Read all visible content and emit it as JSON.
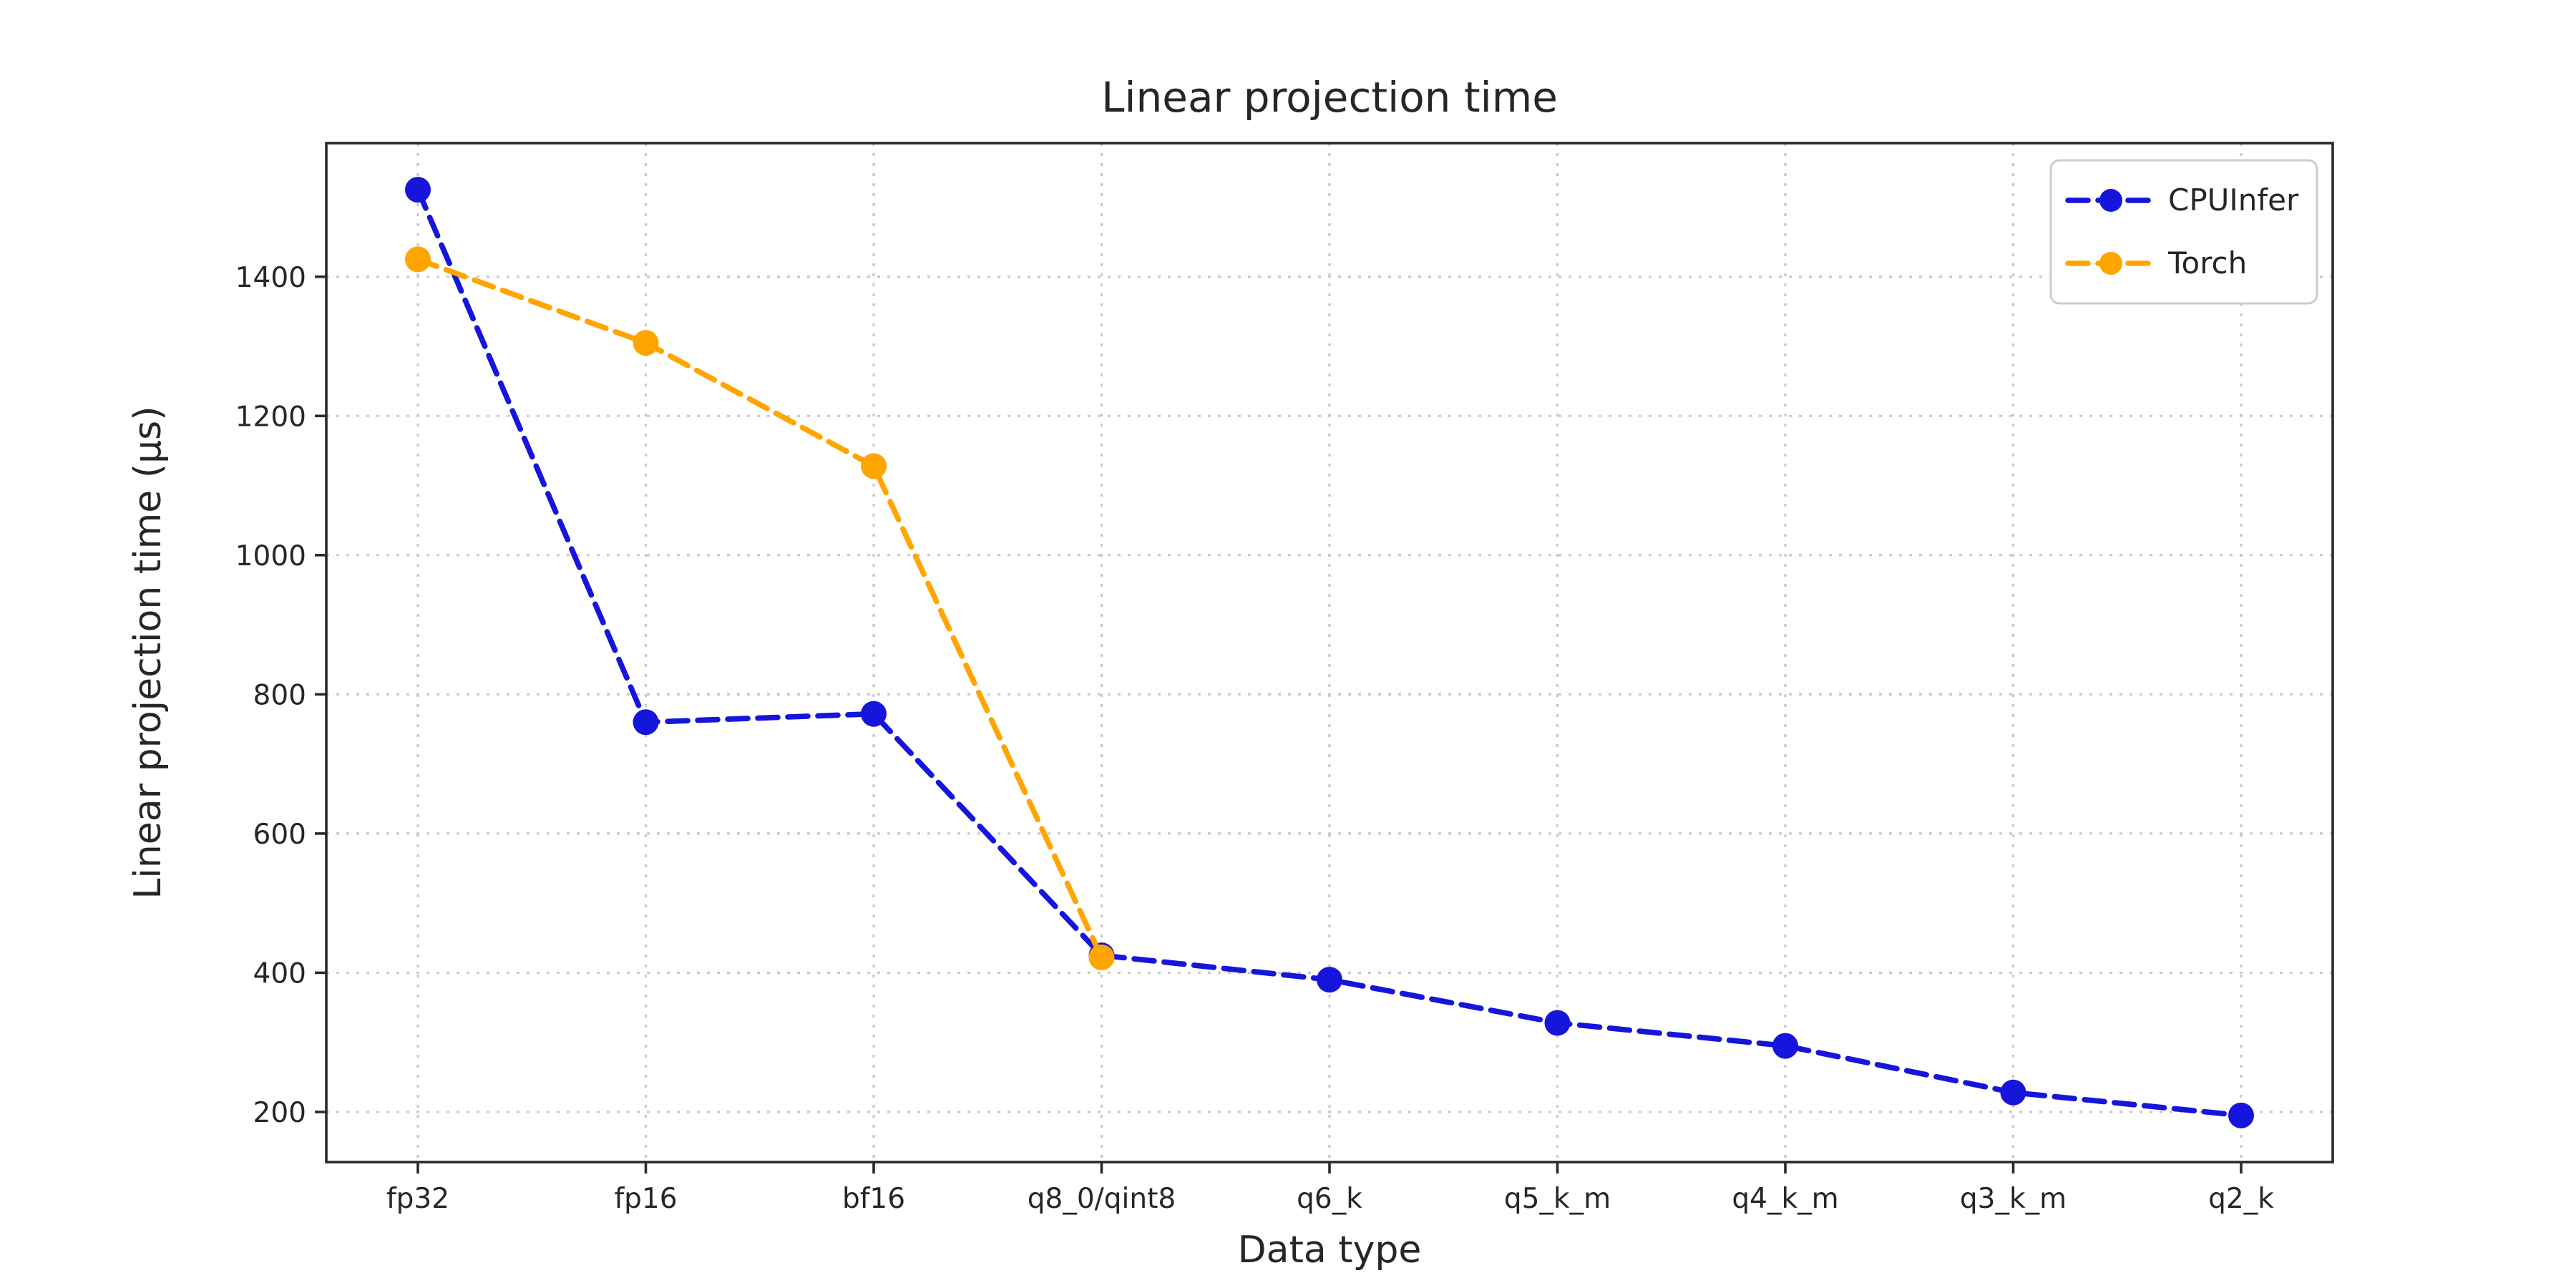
{
  "chart_data": {
    "type": "line",
    "title": "Linear projection time",
    "xlabel": "Data type",
    "ylabel": "Linear projection time (µs)",
    "categories": [
      "fp32",
      "fp16",
      "bf16",
      "q8_0/qint8",
      "q6_k",
      "q5_k_m",
      "q4_k_m",
      "q3_k_m",
      "q2_k"
    ],
    "y_ticks": [
      200,
      400,
      600,
      800,
      1000,
      1200,
      1400
    ],
    "ylim": [
      128,
      1592
    ],
    "grid": true,
    "legend_position": "upper right",
    "line_style": "dashed",
    "marker": "circle",
    "series": [
      {
        "name": "CPUInfer",
        "color": "#1515dc",
        "values": [
          1525,
          760,
          772,
          425,
          390,
          328,
          295,
          228,
          195
        ]
      },
      {
        "name": "Torch",
        "color": "#ffa500",
        "values": [
          1425,
          1305,
          1128,
          422,
          null,
          null,
          null,
          null,
          null
        ]
      }
    ]
  }
}
